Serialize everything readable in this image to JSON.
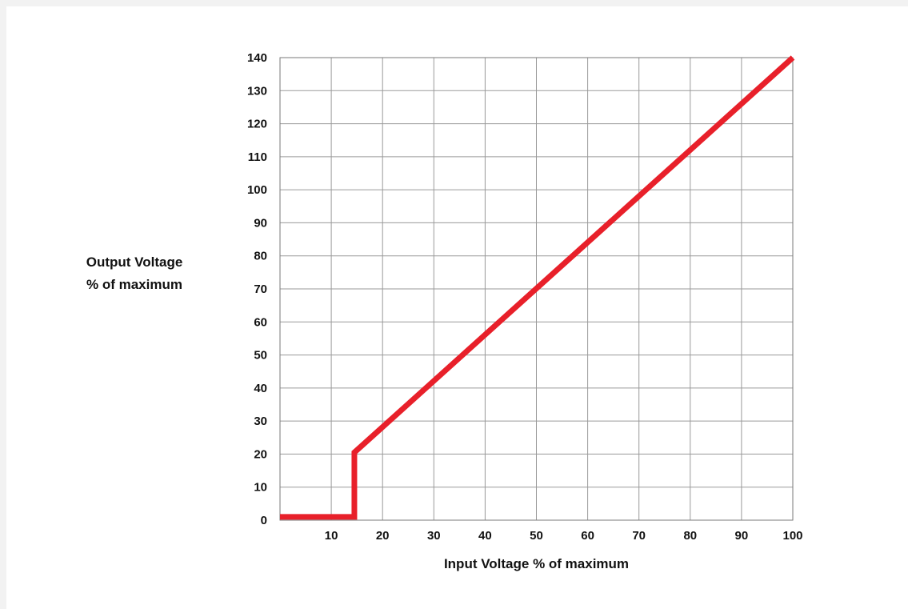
{
  "chart_data": {
    "type": "line",
    "title": "",
    "xlabel": "Input Voltage % of maximum",
    "ylabel_lines": [
      "Output Voltage",
      "% of maximum"
    ],
    "xlim": [
      0,
      100
    ],
    "ylim": [
      0,
      140
    ],
    "x_ticks": [
      10,
      20,
      30,
      40,
      50,
      60,
      70,
      80,
      90,
      100
    ],
    "y_ticks": [
      0,
      10,
      20,
      30,
      40,
      50,
      60,
      70,
      80,
      90,
      100,
      110,
      120,
      130,
      140
    ],
    "grid": true,
    "legend": "none",
    "series": [
      {
        "color": "#e8202a",
        "points": [
          [
            0,
            1
          ],
          [
            14.5,
            1
          ],
          [
            14.5,
            20.5
          ],
          [
            100,
            140
          ]
        ]
      }
    ]
  }
}
